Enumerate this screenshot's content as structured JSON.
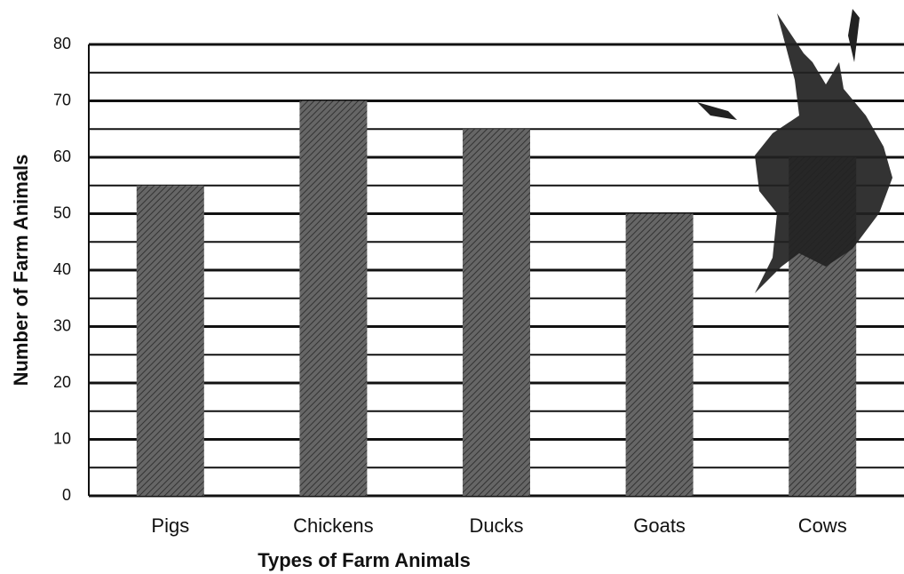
{
  "chart_data": {
    "type": "bar",
    "x_label": "Types of Farm Animals",
    "y_label": "Number of Farm Animals",
    "categories": [
      "Pigs",
      "Chickens",
      "Ducks",
      "Goats",
      "Cows"
    ],
    "values": [
      55,
      70,
      65,
      50,
      60
    ],
    "color": "#555555",
    "ylim": [
      0,
      80
    ],
    "yticks": [
      0,
      10,
      20,
      30,
      40,
      50,
      60,
      70,
      80
    ],
    "grid": true,
    "minor_grid": true
  }
}
